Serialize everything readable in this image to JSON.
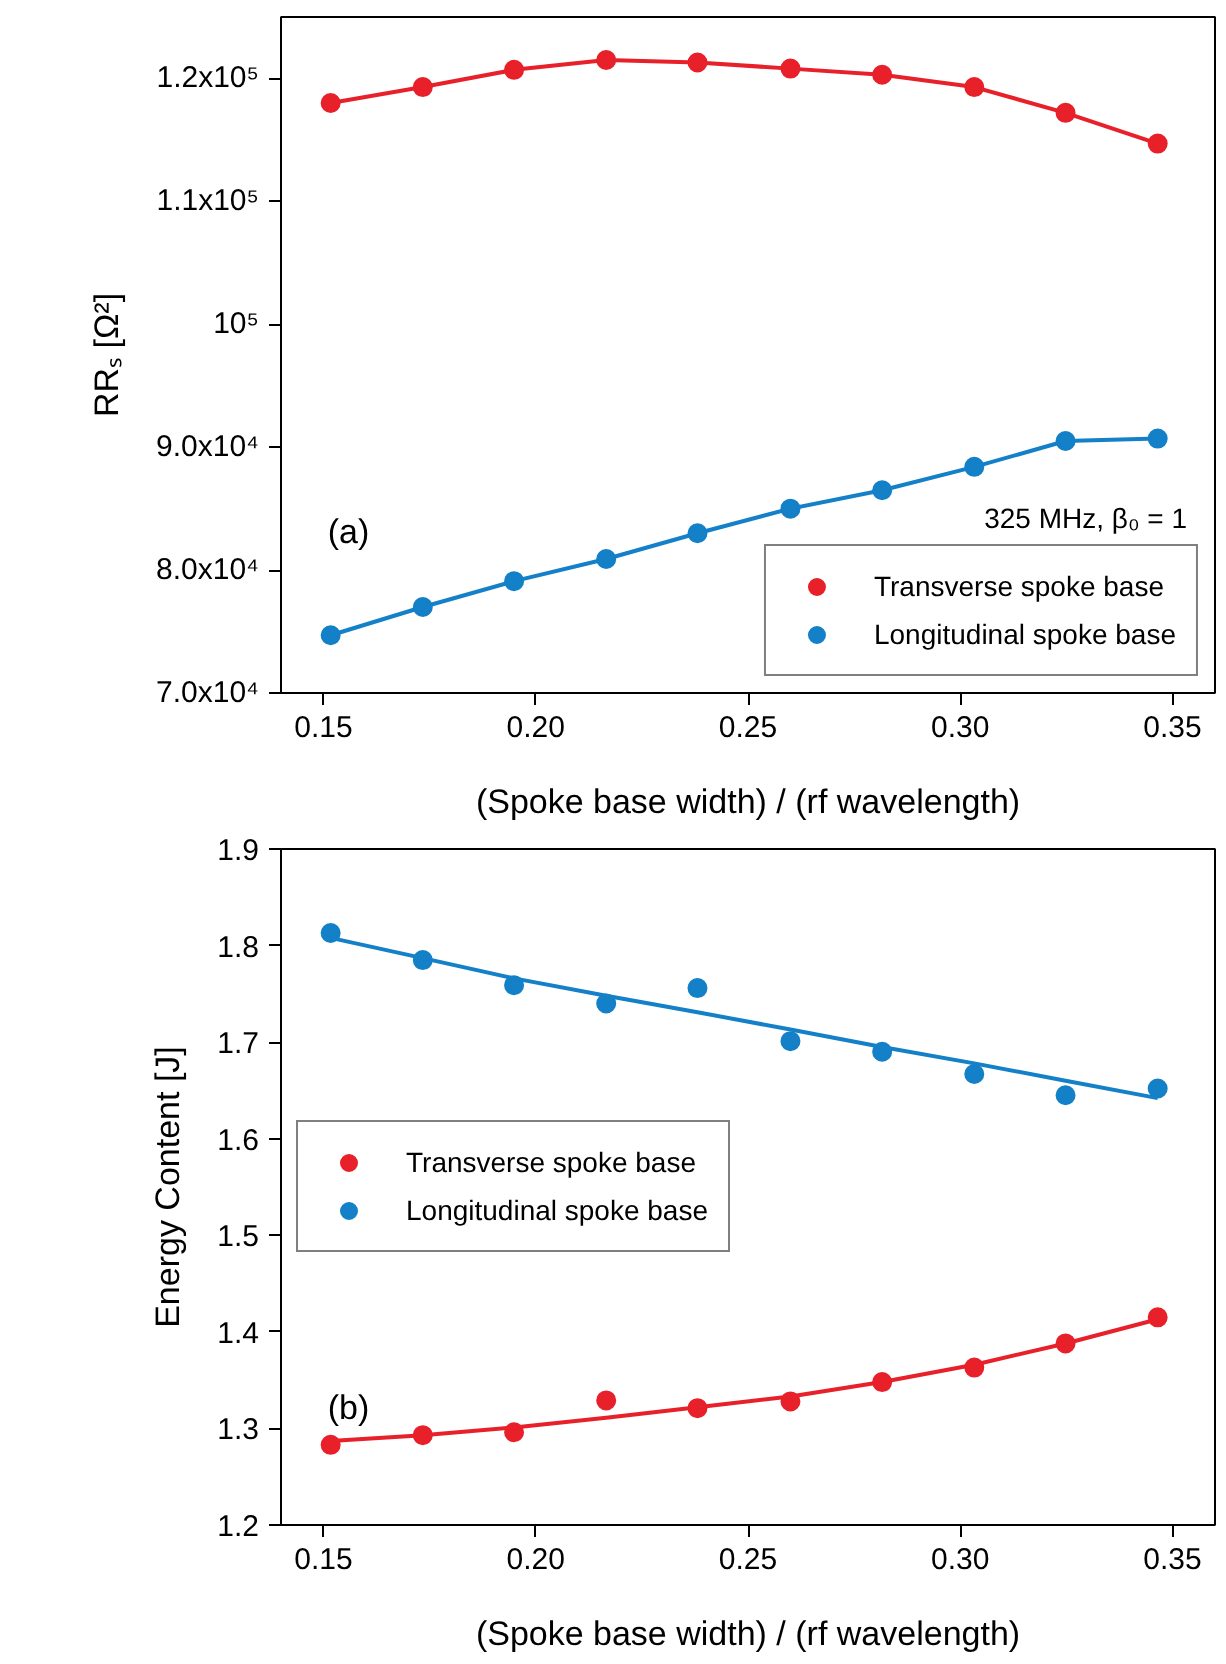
{
  "chart_data": [
    {
      "type": "scatter",
      "xlabel": "(Spoke base width) / (rf wavelength)",
      "ylabel": "RRₛ [Ω²]",
      "x": [
        0.1517,
        0.1734,
        0.1949,
        0.2166,
        0.2381,
        0.26,
        0.2816,
        0.3033,
        0.3248,
        0.3465
      ],
      "series": [
        {
          "name": "Transverse spoke base",
          "type": "line",
          "marker": "circle",
          "color": "#e8202a",
          "values": [
            118000,
            119300,
            120700,
            121500,
            121300,
            120800,
            120300,
            119300,
            117200,
            114700
          ]
        },
        {
          "name": "Longitudinal spoke base",
          "type": "line",
          "marker": "circle",
          "color": "#1380c8",
          "values": [
            74700,
            77000,
            79100,
            80900,
            83000,
            85000,
            86500,
            88400,
            90500,
            90700
          ]
        }
      ],
      "xlim": [
        0.14,
        0.36
      ],
      "xticks": [
        {
          "value": 0.15,
          "label": "0.15"
        },
        {
          "value": 0.2,
          "label": "0.20"
        },
        {
          "value": 0.25,
          "label": "0.25"
        },
        {
          "value": 0.3,
          "label": "0.30"
        },
        {
          "value": 0.35,
          "label": "0.35"
        }
      ],
      "ylim": [
        70000,
        125000
      ],
      "yticks": [
        {
          "value": 70000,
          "label": "7.0x10⁴"
        },
        {
          "value": 80000,
          "label": "8.0x10⁴"
        },
        {
          "value": 90000,
          "label": "9.0x10⁴"
        },
        {
          "value": 100000,
          "label": "10⁵"
        },
        {
          "value": 110000,
          "label": "1.1x10⁵"
        },
        {
          "value": 120000,
          "label": "1.2x10⁵"
        }
      ],
      "annotations": [
        "(a)",
        "325 MHz, β₀ = 1"
      ],
      "legend": "bottom right",
      "grid": false
    },
    {
      "type": "scatter",
      "xlabel": "(Spoke base width) / (rf wavelength)",
      "ylabel": "Energy Content [J]",
      "x": [
        0.1517,
        0.1734,
        0.1949,
        0.2166,
        0.2381,
        0.26,
        0.2816,
        0.3033,
        0.3248,
        0.3465
      ],
      "series": [
        {
          "name": "Transverse spoke base",
          "color": "#e8202a",
          "values": [
            1.283,
            1.293,
            1.296,
            1.329,
            1.321,
            1.328,
            1.348,
            1.363,
            1.388,
            1.415
          ]
        },
        {
          "name": "Longitudinal spoke base",
          "color": "#1380c8",
          "values": [
            1.813,
            1.785,
            1.759,
            1.74,
            1.756,
            1.701,
            1.69,
            1.667,
            1.645,
            1.652
          ]
        },
        {
          "type": "line",
          "color": "#e8202a",
          "values": [
            1.287,
            1.293,
            1.301,
            1.311,
            1.322,
            1.333,
            1.348,
            1.366,
            1.388,
            1.413
          ]
        },
        {
          "type": "line",
          "color": "#1380c8",
          "values": [
            1.808,
            1.787,
            1.766,
            1.748,
            1.731,
            1.713,
            1.695,
            1.678,
            1.66,
            1.642
          ]
        }
      ],
      "xlim": [
        0.14,
        0.36
      ],
      "xticks": [
        {
          "value": 0.15,
          "label": "0.15"
        },
        {
          "value": 0.2,
          "label": "0.20"
        },
        {
          "value": 0.25,
          "label": "0.25"
        },
        {
          "value": 0.3,
          "label": "0.30"
        },
        {
          "value": 0.35,
          "label": "0.35"
        }
      ],
      "ylim": [
        1.2,
        1.9
      ],
      "yticks": [
        1.2,
        1.3,
        1.4,
        1.5,
        1.6,
        1.7,
        1.8,
        1.9
      ],
      "annotations": [
        "(b)"
      ],
      "legend": "left",
      "grid": false
    }
  ]
}
